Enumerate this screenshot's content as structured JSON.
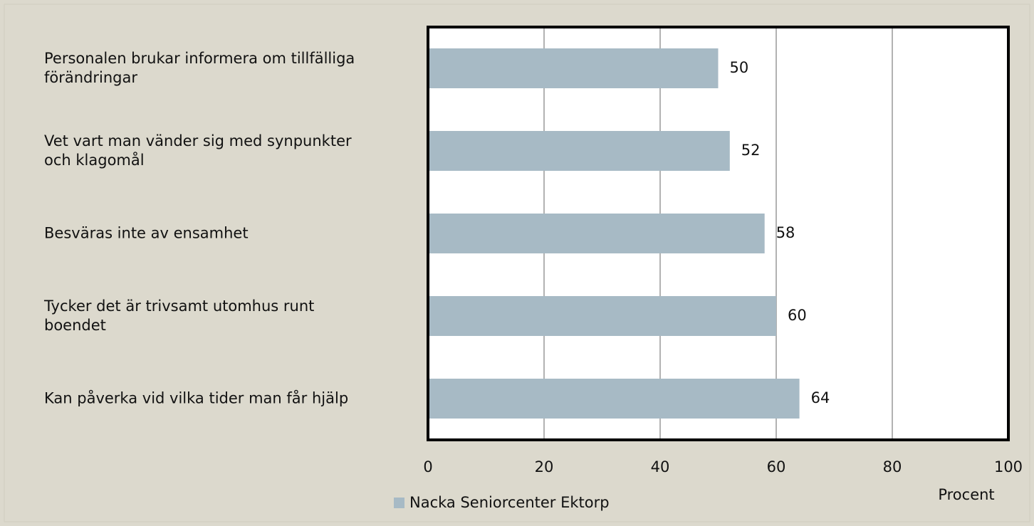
{
  "chart_data": {
    "type": "bar",
    "orientation": "horizontal",
    "categories": [
      "Personalen brukar informera om tillfälliga förändringar",
      "Vet vart man vänder sig med synpunkter och klagomål",
      "Besväras inte av ensamhet",
      "Tycker det är trivsamt utomhus runt boendet",
      "Kan påverka vid vilka tider man får hjälp"
    ],
    "series": [
      {
        "name": "Nacka Seniorcenter Ektorp",
        "color": "#a7bac5",
        "values": [
          50,
          52,
          58,
          60,
          64
        ]
      }
    ],
    "xlim": [
      0,
      100
    ],
    "xticks": [
      0,
      20,
      40,
      60,
      80,
      100
    ],
    "xlabel": "Procent",
    "grid": true,
    "legend": "bottom"
  }
}
